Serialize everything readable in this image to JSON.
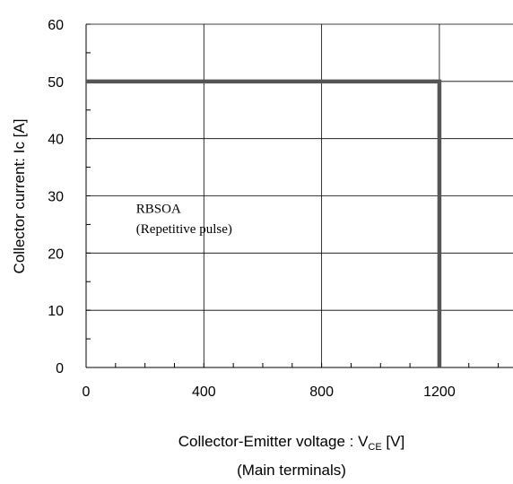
{
  "chart_data": {
    "type": "line",
    "title": "",
    "xlabel": {
      "prefix": "Collector-Emitter voltage : V",
      "subscript": "CE",
      "suffix": " [V]",
      "second_line": "(Main terminals)"
    },
    "ylabel": "Collector current: Ic [A]",
    "xlim": [
      0,
      1450
    ],
    "ylim": [
      0,
      60
    ],
    "x_ticks": [
      0,
      400,
      800,
      1200
    ],
    "y_ticks": [
      0,
      10,
      20,
      30,
      40,
      50,
      60
    ],
    "x_minor_step": 100,
    "y_minor_step": 5,
    "grid": true,
    "series": [
      {
        "x": [
          0,
          1200,
          1200
        ],
        "y": [
          50,
          50,
          0
        ],
        "color": "#555555"
      }
    ],
    "annotations": [
      {
        "text": "RBSOA",
        "x": 170,
        "y": 27
      },
      {
        "text": "(Repetitive pulse)",
        "x": 170,
        "y": 23.5
      }
    ]
  }
}
